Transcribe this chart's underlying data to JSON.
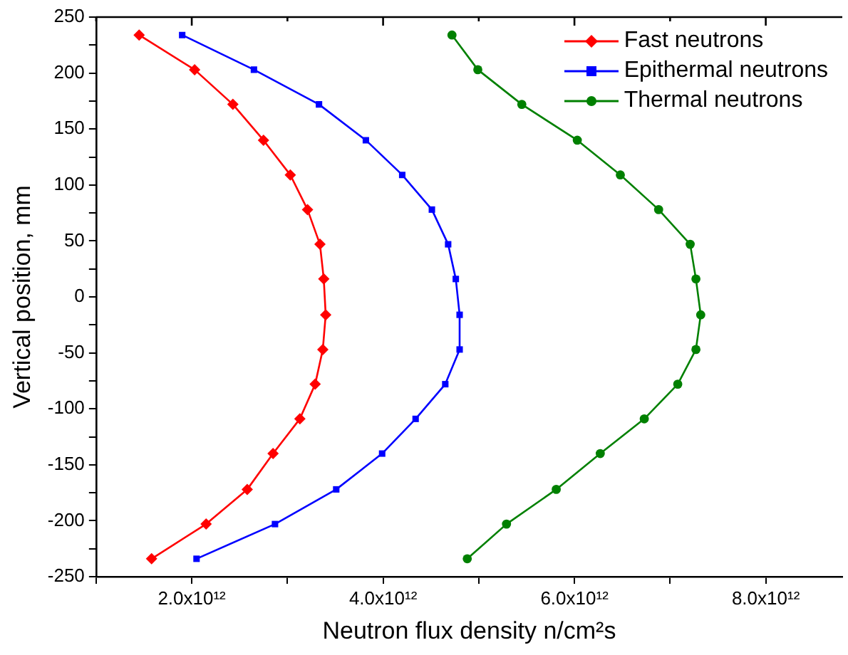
{
  "chart_data": {
    "type": "line",
    "xlabel": "Neutron flux density n/cm²s",
    "ylabel": "Vertical position, mm",
    "xlim": [
      1000000000000.0,
      8800000000000.0
    ],
    "xticks": [
      {
        "value": 1000000000000.0,
        "label": null
      },
      {
        "value": 2000000000000.0,
        "label": "2.0x10¹²"
      },
      {
        "value": 3000000000000.0,
        "label": null
      },
      {
        "value": 4000000000000.0,
        "label": "4.0x10¹²"
      },
      {
        "value": 5000000000000.0,
        "label": null
      },
      {
        "value": 6000000000000.0,
        "label": "6.0x10¹²"
      },
      {
        "value": 7000000000000.0,
        "label": null
      },
      {
        "value": 8000000000000.0,
        "label": "8.0x10¹²"
      }
    ],
    "ylim": [
      -250,
      250
    ],
    "yticks": [
      -250,
      {
        "value": -225,
        "label": null
      },
      -200,
      {
        "value": -175,
        "label": null
      },
      -150,
      {
        "value": -125,
        "label": null
      },
      -100,
      {
        "value": -75,
        "label": null
      },
      -50,
      {
        "value": -25,
        "label": null
      },
      0,
      {
        "value": 25,
        "label": null
      },
      50,
      {
        "value": 75,
        "label": null
      },
      100,
      {
        "value": 125,
        "label": null
      },
      150,
      {
        "value": 175,
        "label": null
      },
      200,
      {
        "value": 225,
        "label": null
      },
      250
    ],
    "grid": false,
    "legend": "top right",
    "line_style": "solid",
    "series": [
      {
        "name": "Fast neutrons",
        "color": "#ff0000",
        "marker": "diamond",
        "x": [
          1450000000000.0,
          2030000000000.0,
          2430000000000.0,
          2750000000000.0,
          3030000000000.0,
          3210000000000.0,
          3340000000000.0,
          3380000000000.0,
          3400000000000.0,
          3370000000000.0,
          3290000000000.0,
          3130000000000.0,
          2850000000000.0,
          2580000000000.0,
          2150000000000.0,
          1580000000000.0
        ],
        "values": [
          234,
          203,
          172,
          140,
          109,
          78,
          47,
          16,
          -16,
          -47,
          -78,
          -109,
          -140,
          -172,
          -203,
          -234
        ]
      },
      {
        "name": "Epithermal neutrons",
        "color": "#0000ff",
        "marker": "square",
        "x": [
          1900000000000.0,
          2650000000000.0,
          3330000000000.0,
          3820000000000.0,
          4200000000000.0,
          4510000000000.0,
          4680000000000.0,
          4760000000000.0,
          4800000000000.0,
          4800000000000.0,
          4650000000000.0,
          4340000000000.0,
          3990000000000.0,
          3510000000000.0,
          2870000000000.0,
          2050000000000.0
        ],
        "values": [
          234,
          203,
          172,
          140,
          109,
          78,
          47,
          16,
          -16,
          -47,
          -78,
          -109,
          -140,
          -172,
          -203,
          -234
        ]
      },
      {
        "name": "Thermal neutrons",
        "color": "#008000",
        "marker": "circle",
        "x": [
          4720000000000.0,
          4990000000000.0,
          5450000000000.0,
          6030000000000.0,
          6480000000000.0,
          6880000000000.0,
          7210000000000.0,
          7270000000000.0,
          7320000000000.0,
          7270000000000.0,
          7080000000000.0,
          6730000000000.0,
          6270000000000.0,
          5810000000000.0,
          5290000000000.0,
          4880000000000.0
        ],
        "values": [
          234,
          203,
          172,
          140,
          109,
          78,
          47,
          16,
          -16,
          -47,
          -78,
          -109,
          -140,
          -172,
          -203,
          -234
        ]
      }
    ]
  }
}
